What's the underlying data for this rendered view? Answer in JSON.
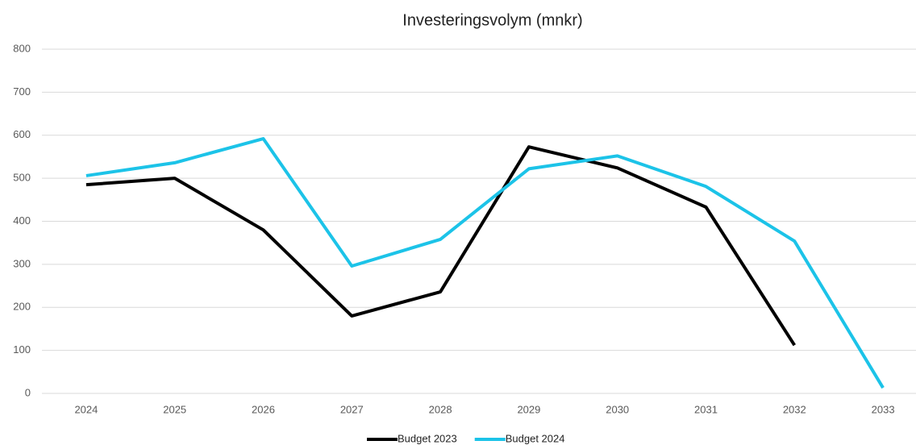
{
  "chart_data": {
    "type": "line",
    "title": "Investeringsvolym (mnkr)",
    "categories": [
      "2024",
      "2025",
      "2026",
      "2027",
      "2028",
      "2029",
      "2030",
      "2031",
      "2032",
      "2033"
    ],
    "series": [
      {
        "name": "Budget 2023",
        "color": "#000000",
        "values": [
          485,
          500,
          380,
          180,
          236,
          573,
          524,
          433,
          112,
          null
        ]
      },
      {
        "name": "Budget 2024",
        "color": "#1cc3e8",
        "values": [
          506,
          536,
          592,
          296,
          358,
          522,
          552,
          481,
          354,
          13
        ]
      }
    ],
    "ylim": [
      0,
      800
    ],
    "yticks": [
      0,
      100,
      200,
      300,
      400,
      500,
      600,
      700,
      800
    ],
    "grid": true,
    "legend": "bottom"
  }
}
